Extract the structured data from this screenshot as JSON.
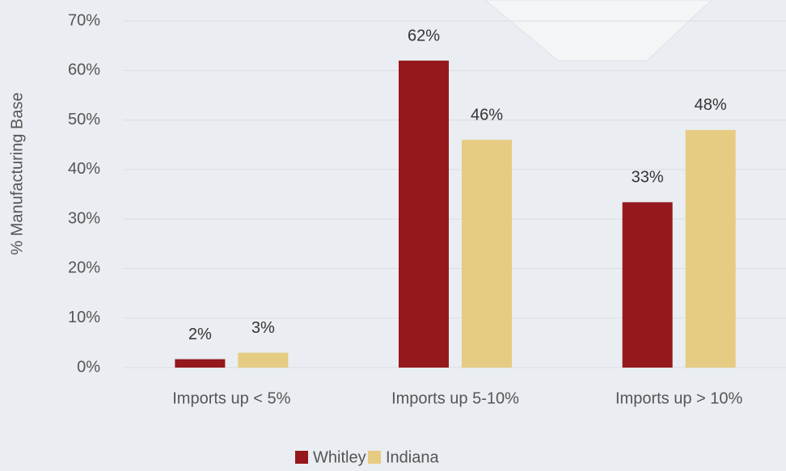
{
  "chart_data": {
    "type": "bar",
    "y_label": "% Manufacturing Base",
    "categories": [
      "Imports up < 5%",
      "Imports up 5-10%",
      "Imports up > 10%"
    ],
    "series": [
      {
        "name": "Whitley",
        "color": "#95181c",
        "values": [
          1.7,
          62,
          33.4
        ],
        "value_labels": [
          "2%",
          "62%",
          "33%"
        ]
      },
      {
        "name": "Indiana",
        "color": "#e6cb82",
        "values": [
          3,
          46,
          48
        ],
        "value_labels": [
          "3%",
          "46%",
          "48%"
        ]
      }
    ],
    "ylim": [
      0,
      70
    ],
    "yticks": [
      {
        "value": 0,
        "label": "0%"
      },
      {
        "value": 10,
        "label": "10%"
      },
      {
        "value": 20,
        "label": "20%"
      },
      {
        "value": 30,
        "label": "30%"
      },
      {
        "value": 40,
        "label": "40%"
      },
      {
        "value": 50,
        "label": "50%"
      },
      {
        "value": 60,
        "label": "60%"
      },
      {
        "value": 70,
        "label": "70%"
      }
    ],
    "grid": true
  }
}
